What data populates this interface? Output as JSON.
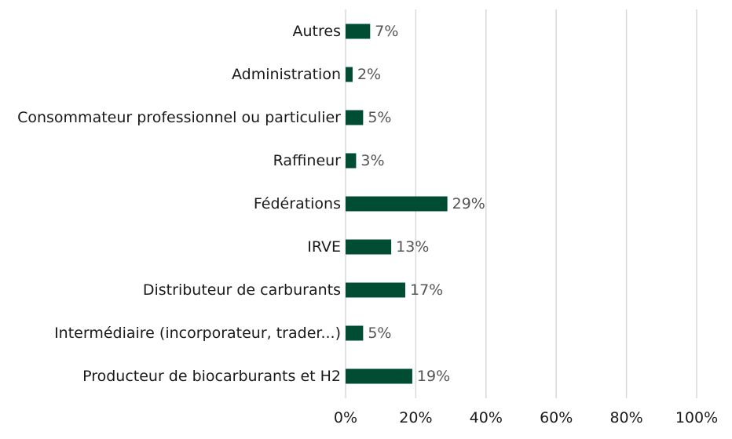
{
  "chart_data": {
    "type": "bar",
    "orientation": "horizontal",
    "categories": [
      "Autres",
      "Administration",
      "Consommateur professionnel ou particulier",
      "Raffineur",
      "Fédérations",
      "IRVE",
      "Distributeur de carburants",
      "Intermédiaire (incorporateur, trader...)",
      "Producteur de biocarburants et H2"
    ],
    "values": [
      7,
      2,
      5,
      3,
      29,
      13,
      17,
      5,
      19
    ],
    "value_labels": [
      "7%",
      "2%",
      "5%",
      "3%",
      "29%",
      "13%",
      "17%",
      "5%",
      "19%"
    ],
    "xlim": [
      0,
      100
    ],
    "x_ticks": [
      0,
      20,
      40,
      60,
      80,
      100
    ],
    "x_tick_labels": [
      "0%",
      "20%",
      "40%",
      "60%",
      "80%",
      "100%"
    ],
    "title": "",
    "xlabel": "",
    "ylabel": "",
    "grid": "vertical",
    "legend": "none",
    "bar_color": "#004d34",
    "grid_color": "#d9d9d9",
    "data_label_color": "#555555",
    "text_color": "#1a1a1a"
  }
}
